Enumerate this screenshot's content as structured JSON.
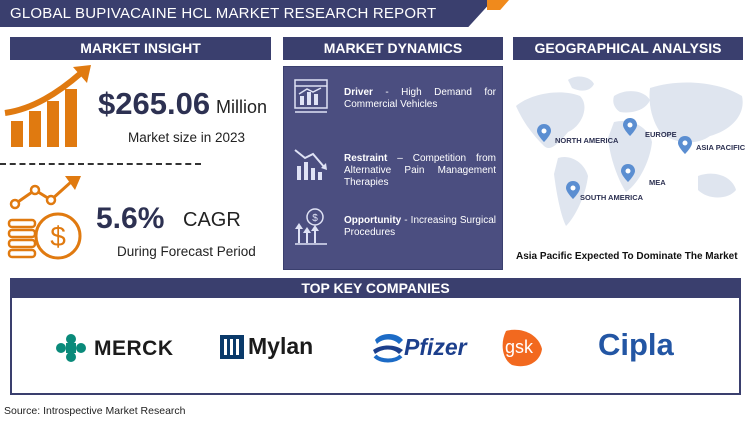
{
  "header": {
    "title": "GLOBAL BUPIVACAINE HCL MARKET RESEARCH REPORT"
  },
  "sections": {
    "insight": "MARKET INSIGHT",
    "dynamics": "MARKET DYNAMICS",
    "geo": "GEOGRAPHICAL ANALYSIS",
    "companies": "TOP KEY COMPANIES"
  },
  "insight": {
    "market_size_value": "$265.06",
    "market_size_unit": "Million",
    "market_size_label": "Market size in 2023",
    "cagr_value": "5.6%",
    "cagr_unit": "CAGR",
    "cagr_label": "During Forecast Period"
  },
  "dynamics": {
    "driver_title": "Driver",
    "driver_text": " - High Demand for Commercial Vehicles",
    "restraint_title": "Restraint",
    "restraint_text": " – Competition from Alternative Pain Management Therapies",
    "opportunity_title": "Opportunity",
    "opportunity_text": " - Increasing Surgical Procedures"
  },
  "geo": {
    "regions": [
      "NORTH AMERICA",
      "EUROPE",
      "ASIA PACIFIC",
      "MEA",
      "SOUTH AMERICA"
    ],
    "caption": "Asia Pacific Expected To Dominate The Market"
  },
  "companies": [
    "MERCK",
    "Mylan",
    "Pfizer",
    "gsk",
    "Cipla"
  ],
  "footer": {
    "source": "Source: Introspective Market Research"
  },
  "colors": {
    "navy": "#3a3f6e",
    "panel": "#4b4e80",
    "accent": "#f08a1c",
    "pin": "#5b8ed1",
    "map": "#dfe5ef"
  }
}
